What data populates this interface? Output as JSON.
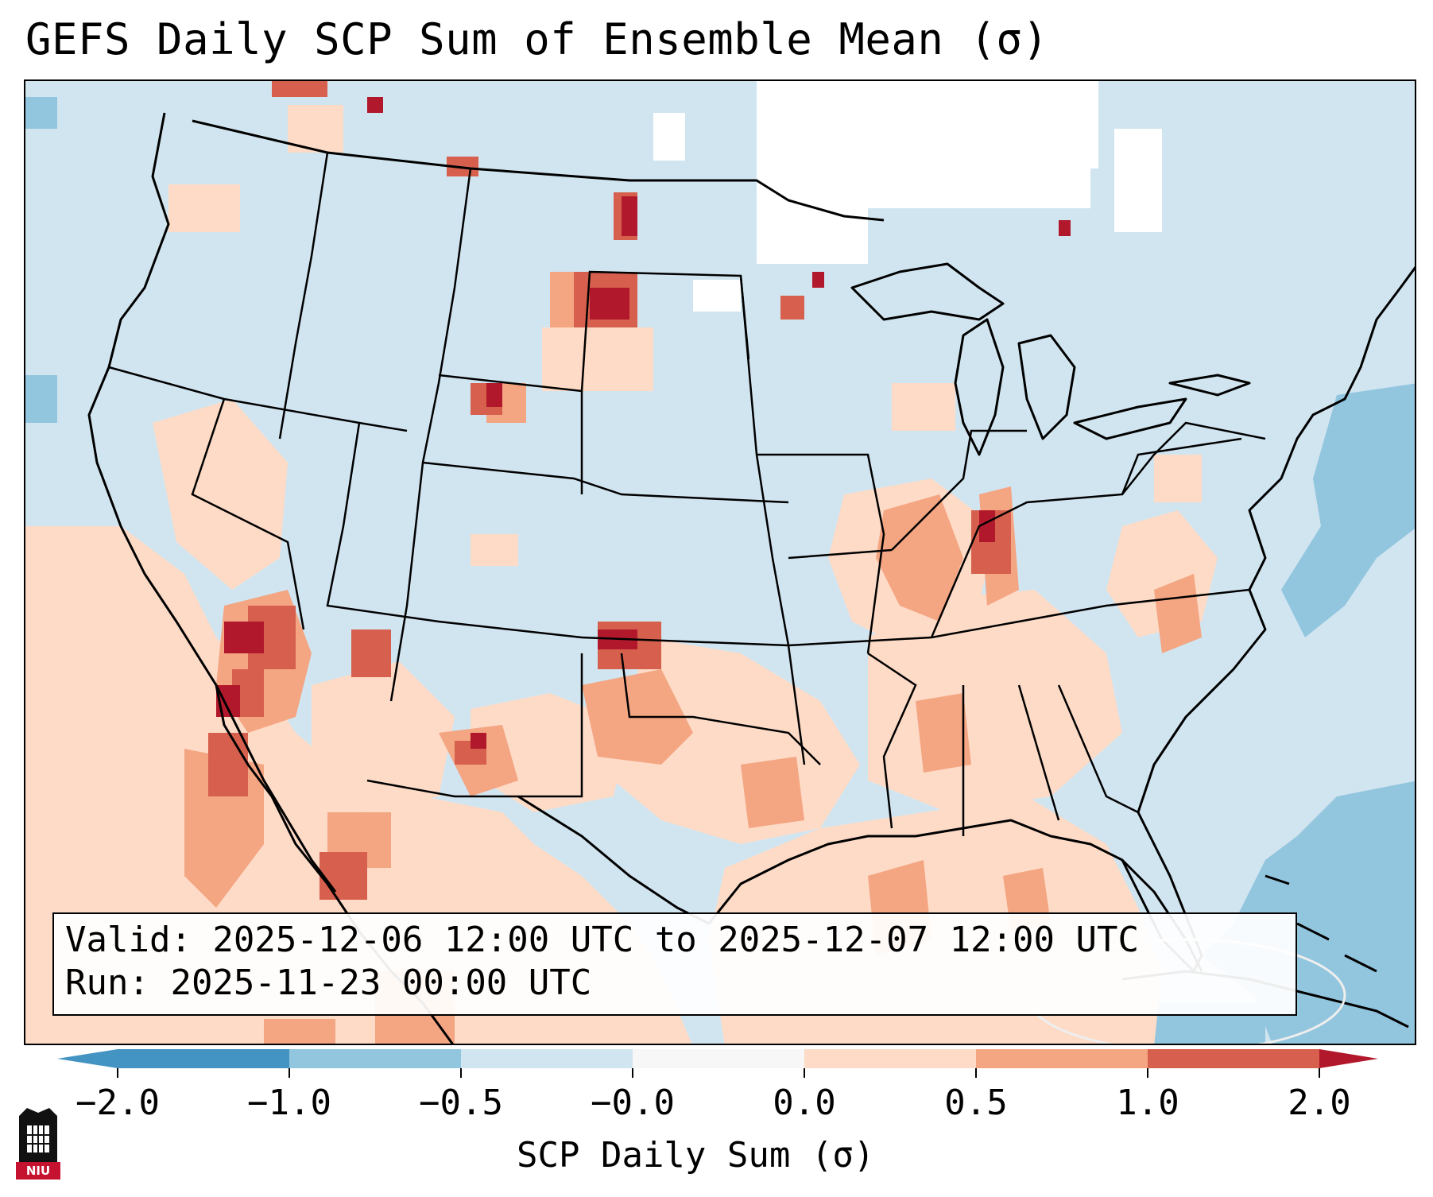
{
  "title": "GEFS Daily SCP Sum of Ensemble Mean (σ)",
  "info": {
    "valid": "Valid: 2025-12-06 12:00 UTC to 2025-12-07 12:00 UTC",
    "run": "Run:   2025-11-23 00:00 UTC"
  },
  "colorbar": {
    "label": "SCP Daily Sum (σ)",
    "ticks": [
      "−2.0",
      "−1.0",
      "−0.5",
      "−0.0",
      "0.0",
      "0.5",
      "1.0",
      "2.0"
    ],
    "colors": [
      "#4393c3",
      "#92c5de",
      "#d1e5f0",
      "#f7f7f7",
      "#fddbc7",
      "#f4a582",
      "#d6604d",
      "#b2182b"
    ]
  },
  "logo": {
    "text": "NIU"
  },
  "map": {
    "extent": "CONUS",
    "background_color": "#d1e5f0"
  }
}
